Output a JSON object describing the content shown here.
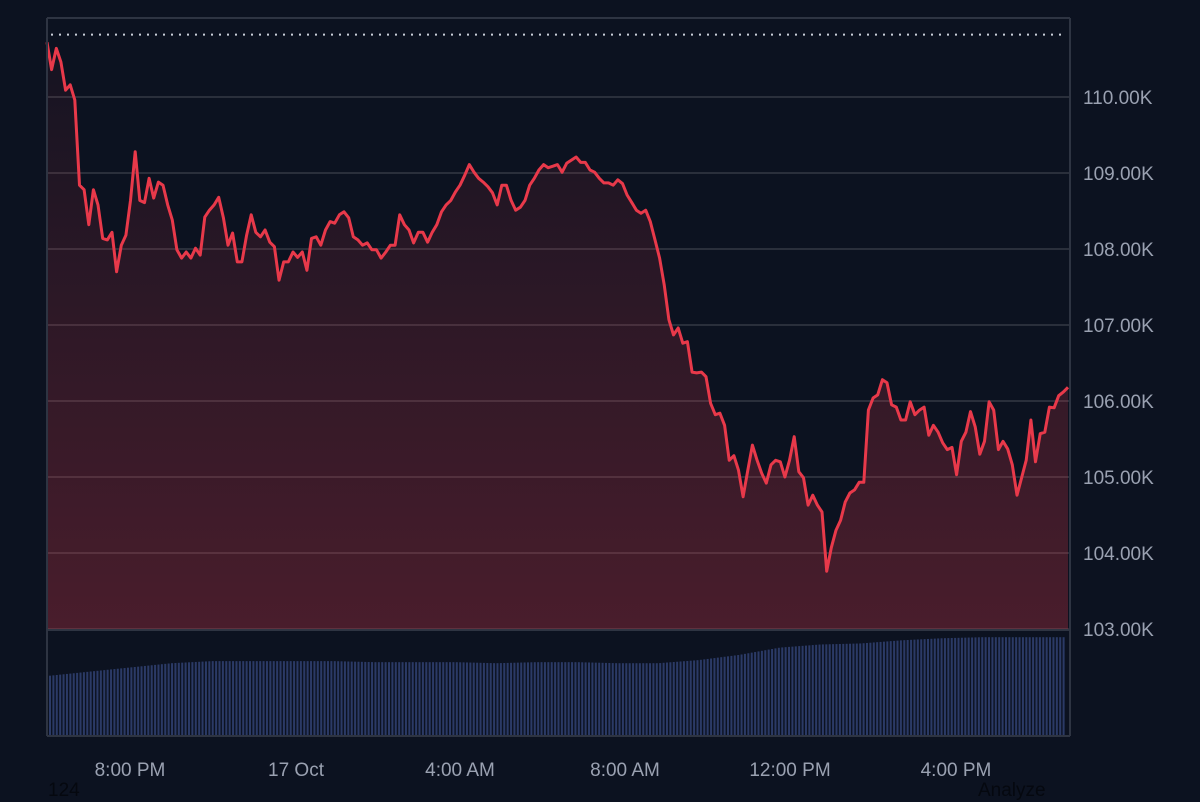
{
  "chart_data": {
    "type": "line",
    "title": "",
    "xlabel": "",
    "ylabel": "",
    "x_tick_labels": [
      "8:00 PM",
      "17 Oct",
      "4:00 AM",
      "8:00 AM",
      "12:00 PM",
      "4:00 PM"
    ],
    "x_range": [
      "16 Oct 6:00 PM",
      "17 Oct 6:45 PM"
    ],
    "y_ticks": [
      110000,
      109000,
      108000,
      107000,
      106000,
      105000,
      104000,
      103000
    ],
    "y_tick_labels": [
      "110.00K",
      "109.00K",
      "108.00K",
      "107.00K",
      "106.00K",
      "105.00K",
      "104.00K",
      "103.00K"
    ],
    "ylim": [
      102000,
      111100
    ],
    "grid": true,
    "reference_line": {
      "value": 110820,
      "style": "dotted"
    },
    "series": [
      {
        "color": "#e8394a",
        "sampling": "evenly spaced across x_range",
        "values_k": [
          110.72,
          110.36,
          110.64,
          110.46,
          110.09,
          110.16,
          109.96,
          108.84,
          108.78,
          108.32,
          108.78,
          108.58,
          108.14,
          108.12,
          108.22,
          107.7,
          108.05,
          108.18,
          108.64,
          109.28,
          108.64,
          108.61,
          108.93,
          108.67,
          108.88,
          108.84,
          108.58,
          108.38,
          107.99,
          107.88,
          107.96,
          107.88,
          108.01,
          107.92,
          108.42,
          108.51,
          108.58,
          108.68,
          108.41,
          108.05,
          108.21,
          107.83,
          107.83,
          108.18,
          108.45,
          108.22,
          108.16,
          108.25,
          108.09,
          108.03,
          107.59,
          107.83,
          107.83,
          107.96,
          107.89,
          107.96,
          107.72,
          108.14,
          108.16,
          108.05,
          108.25,
          108.36,
          108.34,
          108.45,
          108.49,
          108.41,
          108.16,
          108.12,
          108.05,
          108.08,
          107.99,
          107.99,
          107.88,
          107.96,
          108.05,
          108.05,
          108.45,
          108.32,
          108.25,
          108.08,
          108.22,
          108.22,
          108.09,
          108.22,
          108.32,
          108.49,
          108.58,
          108.64,
          108.75,
          108.84,
          108.97,
          109.11,
          109.01,
          108.93,
          108.88,
          108.82,
          108.74,
          108.58,
          108.84,
          108.84,
          108.64,
          108.51,
          108.55,
          108.64,
          108.84,
          108.93,
          109.04,
          109.11,
          109.07,
          109.09,
          109.11,
          109.01,
          109.13,
          109.17,
          109.21,
          109.14,
          109.14,
          109.04,
          109.01,
          108.93,
          108.87,
          108.87,
          108.84,
          108.91,
          108.86,
          108.71,
          108.61,
          108.51,
          108.47,
          108.51,
          108.36,
          108.12,
          107.88,
          107.53,
          107.07,
          106.87,
          106.96,
          106.76,
          106.78,
          106.38,
          106.37,
          106.38,
          106.32,
          105.97,
          105.82,
          105.84,
          105.68,
          105.22,
          105.28,
          105.09,
          104.74,
          105.09,
          105.42,
          105.22,
          105.05,
          104.92,
          105.16,
          105.22,
          105.2,
          105.0,
          105.22,
          105.53,
          105.07,
          104.99,
          104.63,
          104.76,
          104.63,
          104.54,
          103.76,
          104.07,
          104.3,
          104.43,
          104.67,
          104.79,
          104.83,
          104.93,
          104.93,
          105.88,
          106.04,
          106.08,
          106.28,
          106.24,
          105.95,
          105.92,
          105.75,
          105.75,
          105.99,
          105.82,
          105.88,
          105.92,
          105.55,
          105.68,
          105.59,
          105.45,
          105.36,
          105.39,
          105.03,
          105.47,
          105.59,
          105.86,
          105.66,
          105.3,
          105.47,
          105.99,
          105.88,
          105.36,
          105.47,
          105.37,
          105.16,
          104.76,
          104.99,
          105.22,
          105.75,
          105.2,
          105.57,
          105.59,
          105.92,
          105.91,
          106.07,
          106.12,
          106.18
        ]
      }
    ],
    "volume": {
      "color": "#2b3a66",
      "sampling": "hourly, relative level 0-100",
      "levels": [
        58,
        62,
        66,
        70,
        72,
        72,
        72,
        72,
        71,
        71,
        71,
        70,
        71,
        71,
        70,
        70,
        73,
        78,
        85,
        88,
        89,
        92,
        94,
        95,
        95,
        95
      ]
    }
  },
  "footer": {
    "left_text": "124",
    "right_text": "Analyze"
  }
}
